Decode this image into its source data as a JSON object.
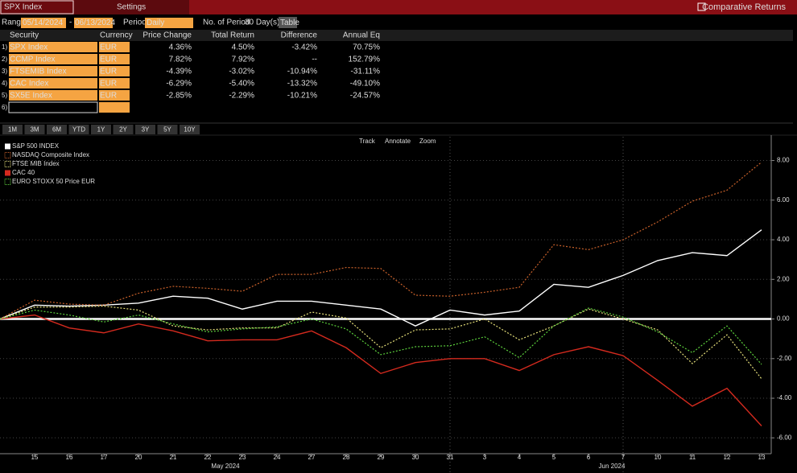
{
  "header": {
    "security": "SPX Index",
    "tab": "Settings",
    "title": "Comparative Returns"
  },
  "controls": {
    "range_label": "Range",
    "start": "05/14/2024",
    "separator": "-",
    "end": "06/13/2024",
    "period_label": "Period",
    "period": "Daily",
    "count_label": "No. of Period",
    "count": "30 Day(s)",
    "button": "Table"
  },
  "table": {
    "columns": [
      "Security",
      "Currency",
      "Price Change",
      "Total Return",
      "Difference",
      "Annual Eq"
    ],
    "rows": [
      [
        "1)",
        "SPX Index",
        "EUR",
        "4.36%",
        "4.50%",
        "-3.42%",
        "70.75%"
      ],
      [
        "2)",
        "CCMP Index",
        "EUR",
        "7.82%",
        "7.92%",
        "--",
        "152.79%"
      ],
      [
        "3)",
        "FTSEMIB Index",
        "EUR",
        "-4.39%",
        "-3.02%",
        "-10.94%",
        "-31.11%"
      ],
      [
        "4)",
        "CAC Index",
        "EUR",
        "-6.29%",
        "-5.40%",
        "-13.32%",
        "-49.10%"
      ],
      [
        "5)",
        "SX5E Index",
        "EUR",
        "-2.85%",
        "-2.29%",
        "-10.21%",
        "-24.57%"
      ],
      [
        "6)"
      ]
    ]
  },
  "ranges": [
    "1M",
    "3M",
    "6M",
    "YTD",
    "1Y",
    "2Y",
    "3Y",
    "5Y",
    "10Y"
  ],
  "tools": [
    "Track",
    "Annotate",
    "Zoom"
  ],
  "chart_data": {
    "type": "line",
    "categories": [
      null,
      "15",
      "16",
      "17",
      "20",
      "21",
      "22",
      "23",
      "24",
      "27",
      "28",
      "29",
      "30",
      "31",
      "3",
      "4",
      "5",
      "6",
      "7",
      "10",
      "11",
      "12",
      "13"
    ],
    "x_group_labels": [
      "May 2024",
      "Jun 2024"
    ],
    "legend": "top-left",
    "grid": true,
    "ylim": [
      -6.8,
      9.2
    ],
    "yticks": [
      {
        "value": 8,
        "label": "8.00"
      },
      {
        "value": 6,
        "label": "6.00"
      },
      {
        "value": 4,
        "label": "4.00"
      },
      {
        "value": 2,
        "label": "2.00"
      },
      {
        "value": 0,
        "label": "0.00"
      },
      {
        "value": -2,
        "label": "-2.00"
      },
      {
        "value": -4,
        "label": "-4.00"
      },
      {
        "value": -6,
        "label": "-6.00"
      }
    ],
    "series": [
      {
        "name": "S&P 500 INDEX",
        "color": "#ffffff",
        "style": "solid",
        "values": [
          0,
          0.7,
          0.65,
          0.7,
          0.8,
          1.15,
          1.05,
          0.5,
          0.9,
          0.9,
          0.7,
          0.5,
          -0.35,
          0.45,
          0.2,
          0.4,
          1.75,
          1.6,
          2.2,
          2.95,
          3.35,
          3.2,
          4.5
        ]
      },
      {
        "name": "NASDAQ Composite Index",
        "color": "#c8602a",
        "style": "dotted",
        "values": [
          0,
          0.95,
          0.75,
          0.7,
          1.3,
          1.65,
          1.55,
          1.4,
          2.25,
          2.25,
          2.6,
          2.55,
          1.2,
          1.15,
          1.35,
          1.6,
          3.75,
          3.5,
          4.0,
          4.9,
          5.95,
          6.5,
          7.92
        ]
      },
      {
        "name": "FTSE MIB Index",
        "color": "#e6e07a",
        "style": "dotted",
        "values": [
          0,
          0.6,
          0.6,
          0.65,
          0.45,
          -0.35,
          -0.55,
          -0.45,
          -0.45,
          0.35,
          0.05,
          -1.45,
          -0.55,
          -0.5,
          0.0,
          -1.05,
          -0.35,
          0.5,
          0.0,
          -0.55,
          -2.25,
          -0.8,
          -3.02
        ]
      },
      {
        "name": "CAC 40",
        "color": "#d42a1e",
        "style": "solid",
        "values": [
          0,
          0.2,
          -0.45,
          -0.7,
          -0.25,
          -0.6,
          -1.1,
          -1.05,
          -1.05,
          -0.6,
          -1.45,
          -2.75,
          -2.2,
          -2.0,
          -2.0,
          -2.6,
          -1.8,
          -1.4,
          -1.85,
          -3.1,
          -4.4,
          -3.5,
          -5.4
        ]
      },
      {
        "name": "EURO STOXX 50 Price EUR",
        "color": "#5cd03c",
        "style": "dotted",
        "values": [
          0,
          0.45,
          0.2,
          -0.15,
          0.2,
          -0.25,
          -0.65,
          -0.5,
          -0.4,
          0.0,
          -0.5,
          -1.8,
          -1.4,
          -1.35,
          -0.9,
          -1.95,
          -0.35,
          0.55,
          0.1,
          -0.65,
          -1.7,
          -0.35,
          -2.29
        ]
      }
    ]
  }
}
